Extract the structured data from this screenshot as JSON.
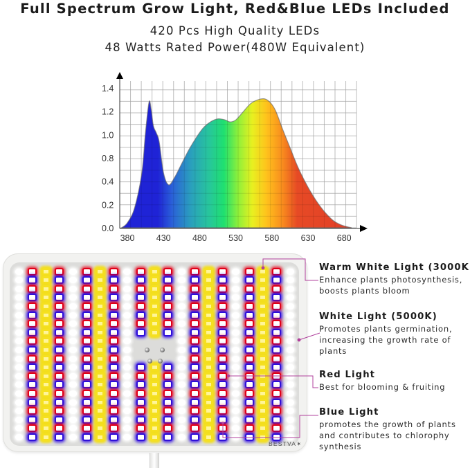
{
  "header": {
    "title": "Full Spectrum Grow Light, Red&Blue LEDs Included",
    "subtitle_line1": "420 Pcs High Quality LEDs",
    "subtitle_line2": "48 Watts Rated Power(480W Equivalent)"
  },
  "chart_data": {
    "type": "area",
    "title": "",
    "xlabel": "",
    "ylabel": "",
    "x_tick_labels": [
      "380",
      "430",
      "480",
      "530",
      "580",
      "630",
      "680"
    ],
    "y_tick_labels": [
      "1.4",
      "1.2",
      "1.0",
      "0.8",
      "0.4",
      "0.2",
      "0.0"
    ],
    "xlim": [
      370,
      700
    ],
    "ylim": [
      0,
      1.4
    ],
    "grid": true,
    "legend": null,
    "fill": "visible-spectrum rainbow gradient (blue to red)",
    "x": [
      372,
      380,
      390,
      400,
      405,
      410,
      413,
      416,
      420,
      424,
      430,
      437,
      445,
      455,
      465,
      475,
      485,
      495,
      505,
      515,
      522,
      530,
      540,
      550,
      560,
      570,
      578,
      585,
      595,
      605,
      615,
      625,
      635,
      645,
      655,
      665,
      675,
      684,
      690
    ],
    "values": [
      0.0,
      0.05,
      0.2,
      0.55,
      0.95,
      1.26,
      1.18,
      1.02,
      0.95,
      0.86,
      0.55,
      0.43,
      0.5,
      0.64,
      0.78,
      0.9,
      1.0,
      1.06,
      1.09,
      1.08,
      1.06,
      1.08,
      1.16,
      1.24,
      1.28,
      1.29,
      1.25,
      1.17,
      0.98,
      0.8,
      0.62,
      0.47,
      0.34,
      0.23,
      0.14,
      0.07,
      0.03,
      0.01,
      0.0
    ]
  },
  "panel": {
    "brand": "BESTVA✶",
    "columns": [
      "white",
      "redblue",
      "yellow",
      "redblue",
      "white",
      "redblue",
      "yellow",
      "redblue",
      "white",
      "redblue",
      "yellow",
      "redblue",
      "white",
      "redblue",
      "yellow",
      "redblue",
      "white",
      "redblue",
      "yellow",
      "redblue",
      "white"
    ],
    "rows": 20
  },
  "labels": [
    {
      "heading": "Warm White Light (3000K)",
      "desc": "Enhance plants photosynthesis, boosts plants bloom"
    },
    {
      "heading": "White Light (5000K)",
      "desc": "Promotes plants germination, increasing the growth rate of plants"
    },
    {
      "heading": "Red Light",
      "desc": "Best for blooming & fruiting"
    },
    {
      "heading": "Blue Light",
      "desc": "promotes the growth of plants and contributes to chlorophy synthesis"
    }
  ],
  "colors": {
    "leader_line": "#b0409c",
    "red_led": "#e00018",
    "blue_led": "#2e10d8",
    "yellow_led": "#f5e020"
  }
}
